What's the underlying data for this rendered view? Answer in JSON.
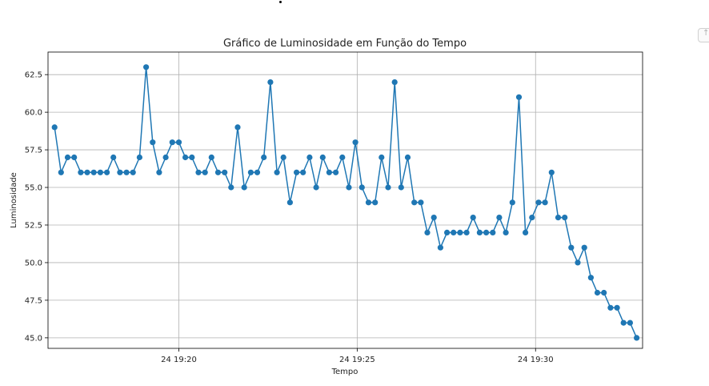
{
  "chart_data": {
    "type": "line",
    "title": "Gráfico de Luminosidade em Função do Tempo",
    "xlabel": "Tempo",
    "ylabel": "Luminosidade",
    "ylim": [
      44.3,
      64.0
    ],
    "xlim": [
      "24 19:16:20",
      "24 19:33:00"
    ],
    "grid": true,
    "series_color": "#1f77b4",
    "y_ticks": [
      {
        "value": 45.0,
        "label": "45.0"
      },
      {
        "value": 47.5,
        "label": "47.5"
      },
      {
        "value": 50.0,
        "label": "50.0"
      },
      {
        "value": 52.5,
        "label": "52.5"
      },
      {
        "value": 55.0,
        "label": "55.0"
      },
      {
        "value": 57.5,
        "label": "57.5"
      },
      {
        "value": 60.0,
        "label": "60.0"
      },
      {
        "value": 62.5,
        "label": "62.5"
      }
    ],
    "x_ticks": [
      {
        "value": "24 19:20:00",
        "label": "24 19:20"
      },
      {
        "value": "24 19:25:00",
        "label": "24 19:25"
      },
      {
        "value": "24 19:30:00",
        "label": "24 19:30"
      }
    ],
    "series": [
      {
        "x": [
          "24 19:16:31",
          "24 19:16:42",
          "24 19:16:53",
          "24 19:17:04",
          "24 19:17:15",
          "24 19:17:26",
          "24 19:17:37",
          "24 19:17:48",
          "24 19:17:59",
          "24 19:18:10",
          "24 19:18:21",
          "24 19:18:32",
          "24 19:18:43",
          "24 19:18:54",
          "24 19:19:05",
          "24 19:19:16",
          "24 19:19:27",
          "24 19:19:38",
          "24 19:19:49",
          "24 19:20:00",
          "24 19:20:11",
          "24 19:20:22",
          "24 19:20:33",
          "24 19:20:44",
          "24 19:20:55",
          "24 19:21:06",
          "24 19:21:17",
          "24 19:21:28",
          "24 19:21:39",
          "24 19:21:50",
          "24 19:22:01",
          "24 19:22:12",
          "24 19:22:23",
          "24 19:22:34",
          "24 19:22:45",
          "24 19:22:56",
          "24 19:23:07",
          "24 19:23:18",
          "24 19:23:29",
          "24 19:23:40",
          "24 19:23:51",
          "24 19:24:02",
          "24 19:24:13",
          "24 19:24:24",
          "24 19:24:35",
          "24 19:24:46",
          "24 19:24:57",
          "24 19:25:08",
          "24 19:25:19",
          "24 19:25:30",
          "24 19:25:41",
          "24 19:25:52",
          "24 19:26:03",
          "24 19:26:14",
          "24 19:26:25",
          "24 19:26:36",
          "24 19:26:47",
          "24 19:26:58",
          "24 19:27:09",
          "24 19:27:20",
          "24 19:27:31",
          "24 19:27:42",
          "24 19:27:53",
          "24 19:28:04",
          "24 19:28:15",
          "24 19:28:26",
          "24 19:28:37",
          "24 19:28:48",
          "24 19:28:59",
          "24 19:29:10",
          "24 19:29:21",
          "24 19:29:32",
          "24 19:29:43",
          "24 19:29:54",
          "24 19:30:05",
          "24 19:30:16",
          "24 19:30:27",
          "24 19:30:38",
          "24 19:30:49",
          "24 19:31:00",
          "24 19:31:11",
          "24 19:31:22",
          "24 19:31:33",
          "24 19:31:44",
          "24 19:31:55",
          "24 19:32:06",
          "24 19:32:17",
          "24 19:32:28",
          "24 19:32:39",
          "24 19:32:50"
        ],
        "values": [
          59,
          56,
          57,
          57,
          56,
          56,
          56,
          56,
          56,
          57,
          56,
          56,
          56,
          57,
          63,
          58,
          56,
          57,
          58,
          58,
          57,
          57,
          56,
          56,
          57,
          56,
          56,
          55,
          59,
          55,
          56,
          56,
          57,
          62,
          56,
          57,
          54,
          56,
          56,
          57,
          55,
          57,
          56,
          56,
          57,
          55,
          58,
          55,
          54,
          54,
          57,
          55,
          62,
          55,
          57,
          54,
          54,
          52,
          53,
          51,
          52,
          52,
          52,
          52,
          53,
          52,
          52,
          52,
          53,
          52,
          54,
          61,
          52,
          53,
          54,
          54,
          56,
          53,
          53,
          51,
          50,
          51,
          49,
          48,
          48,
          47,
          47,
          46,
          46,
          45
        ]
      }
    ]
  }
}
